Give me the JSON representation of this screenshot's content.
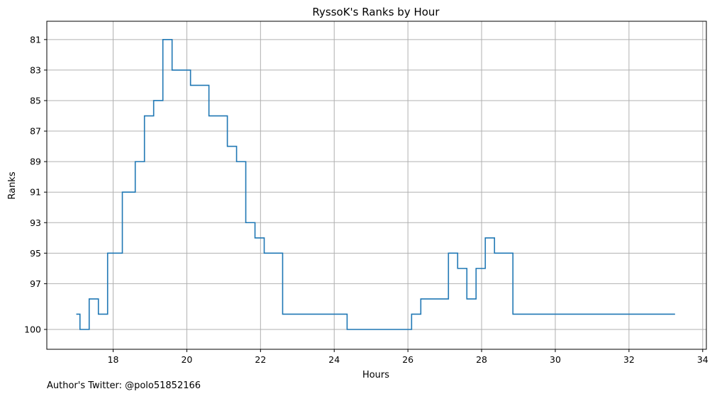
{
  "footer_note": "Author's Twitter: @polo51852166",
  "chart_data": {
    "type": "line",
    "step": "post",
    "title": "RyssoK's Ranks by Hour",
    "xlabel": "Hours",
    "ylabel": "Ranks",
    "xlim": [
      16.2,
      34.1
    ],
    "ylim": [
      101.3,
      79.8
    ],
    "y_inverted": true,
    "x_ticks": [
      18,
      20,
      22,
      24,
      26,
      28,
      30,
      32,
      34
    ],
    "y_ticks": [
      81,
      83,
      85,
      87,
      89,
      91,
      93,
      95,
      97,
      100
    ],
    "grid": true,
    "line_color": "#1f77b4",
    "series": [
      {
        "x": [
          17.0,
          17.1,
          17.35,
          17.6,
          17.85,
          18.25,
          18.6,
          18.85,
          19.1,
          19.35,
          19.6,
          20.1,
          20.6,
          21.1,
          21.35,
          21.6,
          21.85,
          22.1,
          22.6,
          24.35,
          26.1,
          26.35,
          27.1,
          27.35,
          27.6,
          27.85,
          28.1,
          28.35,
          28.85,
          33.25
        ],
        "y": [
          99,
          100,
          98,
          99,
          95,
          91,
          89,
          86,
          85,
          81,
          83,
          84,
          86,
          88,
          89,
          93,
          94,
          95,
          99,
          100,
          99,
          98,
          95,
          96,
          98,
          96,
          94,
          95,
          99,
          99
        ]
      }
    ]
  }
}
